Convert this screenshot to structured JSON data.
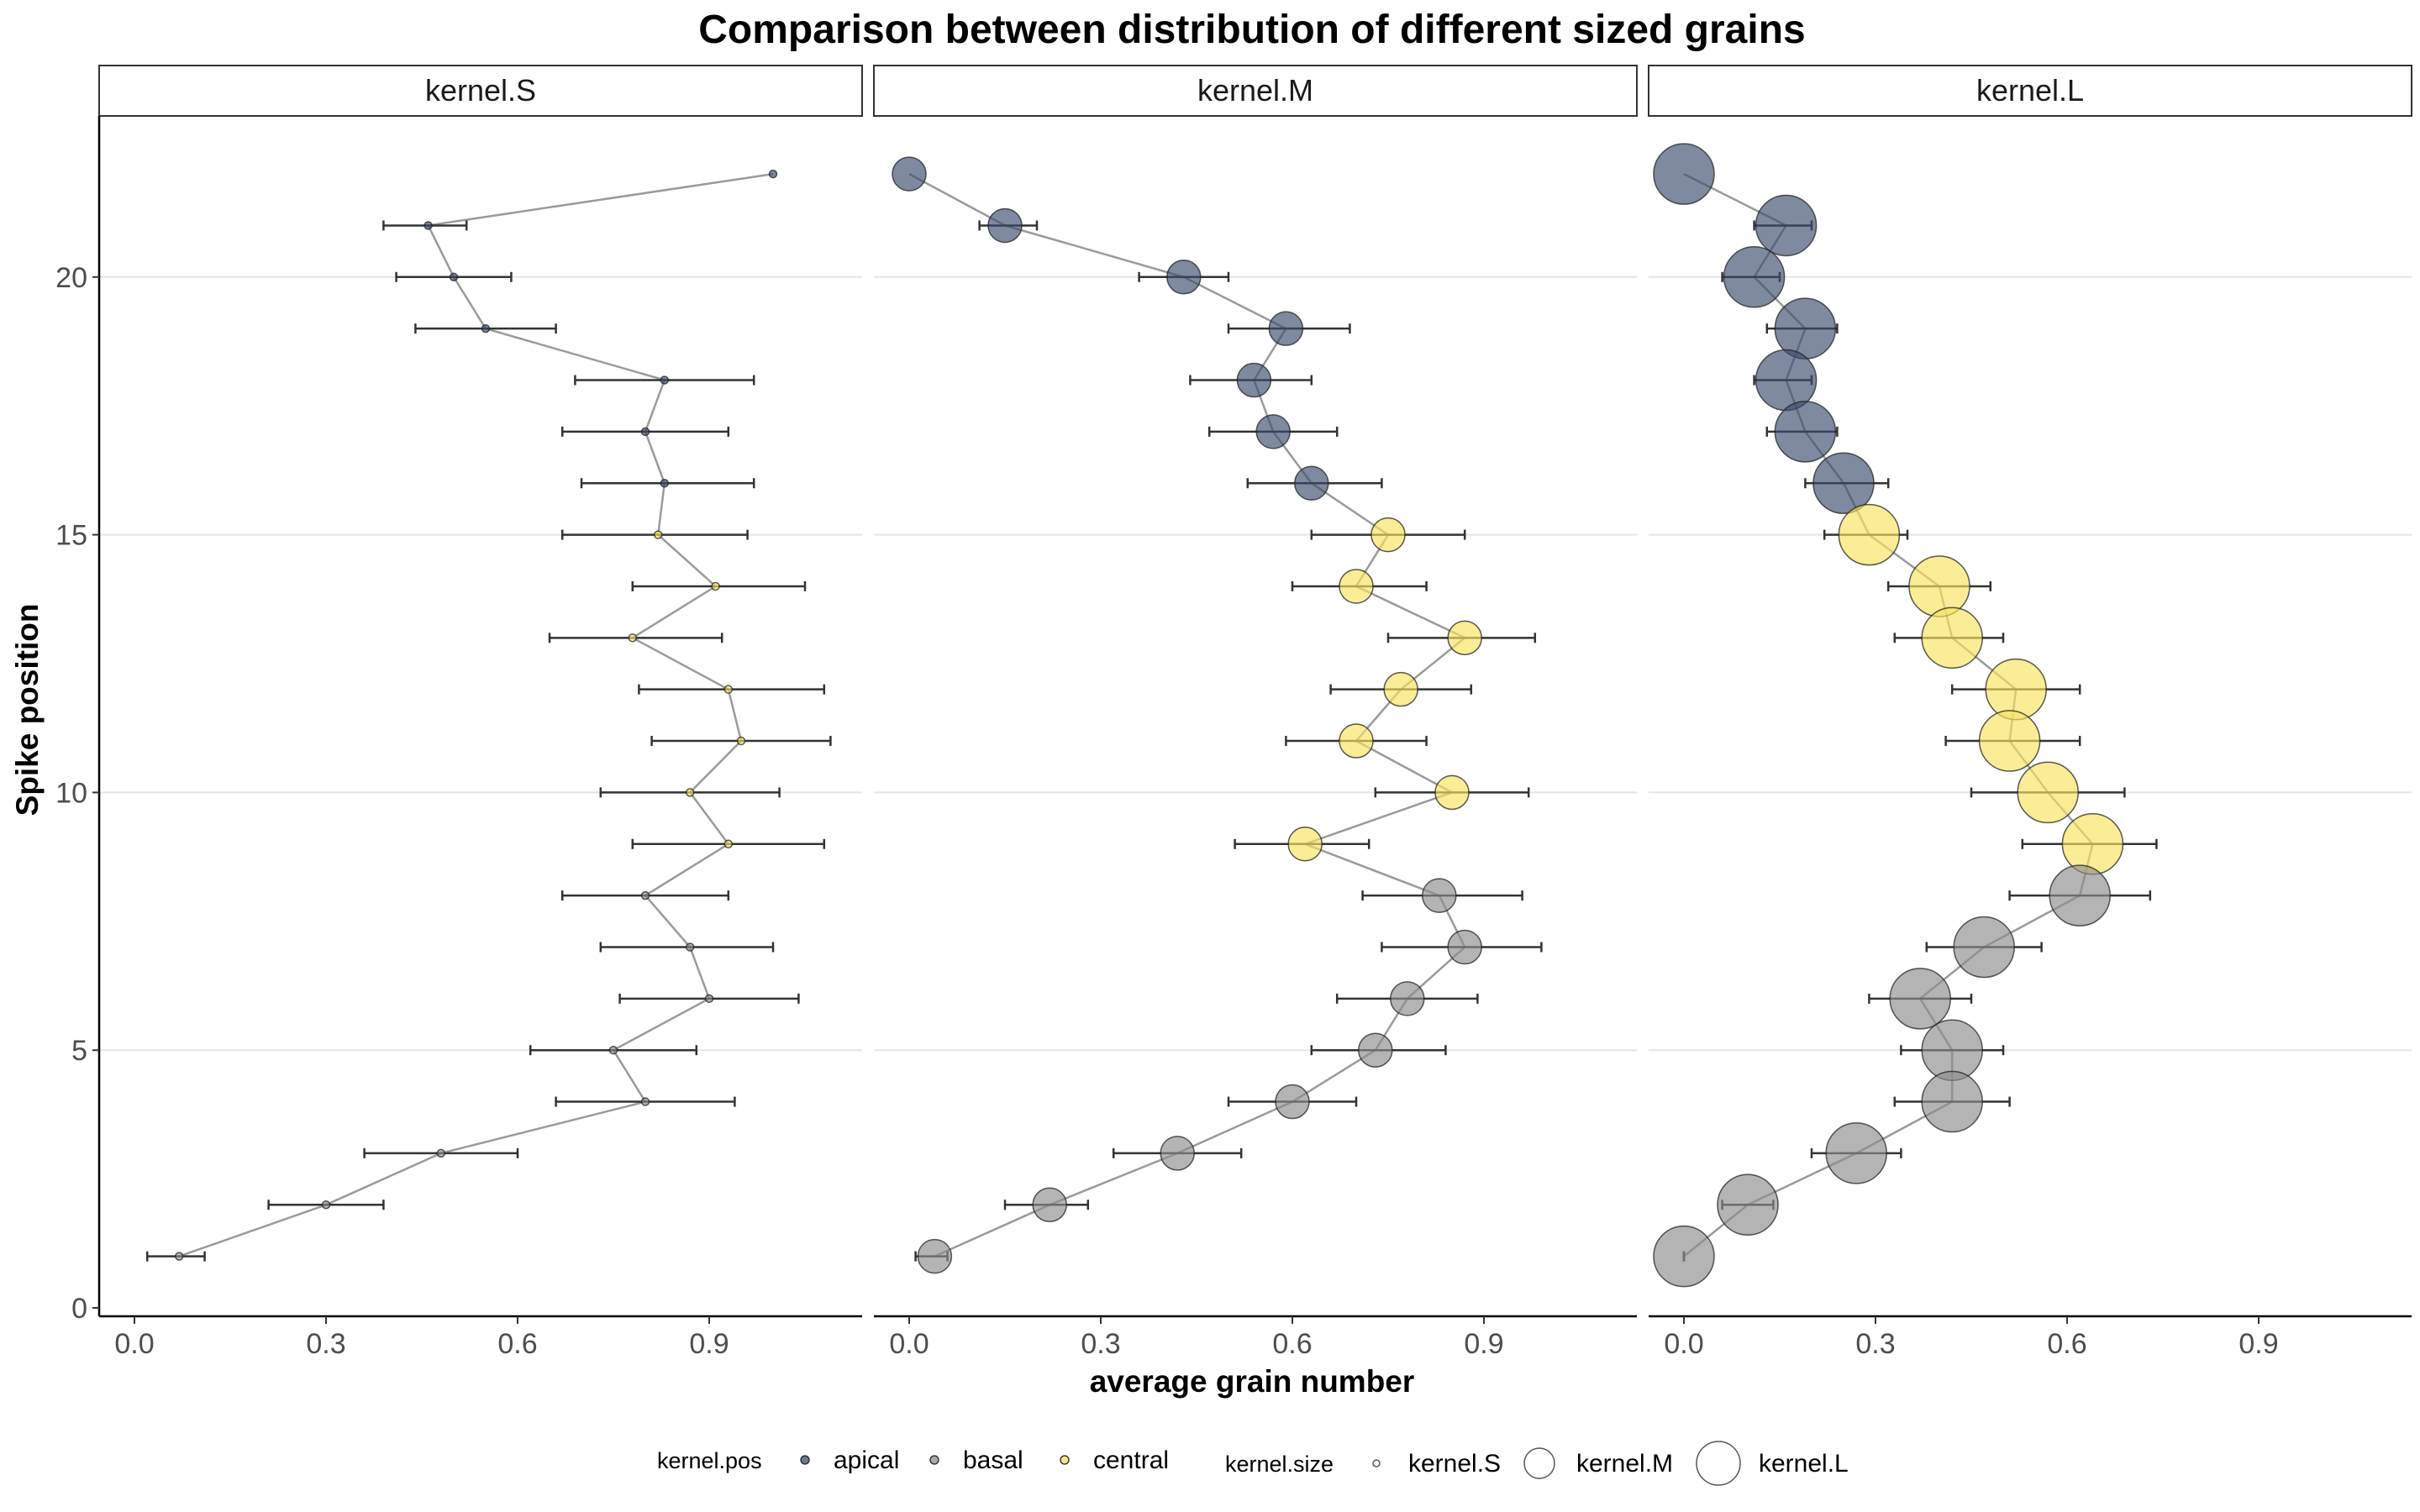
{
  "chart_data": {
    "type": "scatter",
    "title": "Comparison between distribution of different sized grains",
    "xlabel": "average grain number",
    "ylabel": "Spike position",
    "xlim": [
      -0.07,
      1.14
    ],
    "ylim": [
      -0.2,
      23.2
    ],
    "x_ticks": [
      "0.0",
      "0.3",
      "0.6",
      "0.9"
    ],
    "y_ticks": [
      "0",
      "5",
      "10",
      "15",
      "20"
    ],
    "grid": "horizontal major",
    "colors": {
      "apical": "#3b4a6b",
      "basal": "#8c8c8c",
      "central": "#f7e35c",
      "line": "#9a9a9a",
      "errorbar": "#333333"
    },
    "legend": {
      "position": "bottom",
      "pos_title": "kernel.pos",
      "pos_items": [
        "apical",
        "basal",
        "central"
      ],
      "size_title": "kernel.size",
      "size_items": [
        "kernel.S",
        "kernel.M",
        "kernel.L"
      ]
    },
    "panels": [
      {
        "name": "kernel.S",
        "size": "kernel.S",
        "points": [
          {
            "y": 22,
            "x": 1.0,
            "lo": null,
            "hi": null,
            "pos": "apical"
          },
          {
            "y": 21,
            "x": 0.46,
            "lo": 0.39,
            "hi": 0.52,
            "pos": "apical"
          },
          {
            "y": 20,
            "x": 0.5,
            "lo": 0.41,
            "hi": 0.59,
            "pos": "apical"
          },
          {
            "y": 19,
            "x": 0.55,
            "lo": 0.44,
            "hi": 0.66,
            "pos": "apical"
          },
          {
            "y": 18,
            "x": 0.83,
            "lo": 0.69,
            "hi": 0.97,
            "pos": "apical"
          },
          {
            "y": 17,
            "x": 0.8,
            "lo": 0.67,
            "hi": 0.93,
            "pos": "apical"
          },
          {
            "y": 16,
            "x": 0.83,
            "lo": 0.7,
            "hi": 0.97,
            "pos": "apical"
          },
          {
            "y": 15,
            "x": 0.82,
            "lo": 0.67,
            "hi": 0.96,
            "pos": "central"
          },
          {
            "y": 14,
            "x": 0.91,
            "lo": 0.78,
            "hi": 1.05,
            "pos": "central"
          },
          {
            "y": 13,
            "x": 0.78,
            "lo": 0.65,
            "hi": 0.92,
            "pos": "central"
          },
          {
            "y": 12,
            "x": 0.93,
            "lo": 0.79,
            "hi": 1.08,
            "pos": "central"
          },
          {
            "y": 11,
            "x": 0.95,
            "lo": 0.81,
            "hi": 1.09,
            "pos": "central"
          },
          {
            "y": 10,
            "x": 0.87,
            "lo": 0.73,
            "hi": 1.01,
            "pos": "central"
          },
          {
            "y": 9,
            "x": 0.93,
            "lo": 0.78,
            "hi": 1.08,
            "pos": "central"
          },
          {
            "y": 8,
            "x": 0.8,
            "lo": 0.67,
            "hi": 0.93,
            "pos": "basal"
          },
          {
            "y": 7,
            "x": 0.87,
            "lo": 0.73,
            "hi": 1.0,
            "pos": "basal"
          },
          {
            "y": 6,
            "x": 0.9,
            "lo": 0.76,
            "hi": 1.04,
            "pos": "basal"
          },
          {
            "y": 5,
            "x": 0.75,
            "lo": 0.62,
            "hi": 0.88,
            "pos": "basal"
          },
          {
            "y": 4,
            "x": 0.8,
            "lo": 0.66,
            "hi": 0.94,
            "pos": "basal"
          },
          {
            "y": 3,
            "x": 0.48,
            "lo": 0.36,
            "hi": 0.6,
            "pos": "basal"
          },
          {
            "y": 2,
            "x": 0.3,
            "lo": 0.21,
            "hi": 0.39,
            "pos": "basal"
          },
          {
            "y": 1,
            "x": 0.07,
            "lo": 0.02,
            "hi": 0.11,
            "pos": "basal"
          }
        ]
      },
      {
        "name": "kernel.M",
        "size": "kernel.M",
        "points": [
          {
            "y": 22,
            "x": 0.0,
            "lo": null,
            "hi": null,
            "pos": "apical"
          },
          {
            "y": 21,
            "x": 0.15,
            "lo": 0.11,
            "hi": 0.2,
            "pos": "apical"
          },
          {
            "y": 20,
            "x": 0.43,
            "lo": 0.36,
            "hi": 0.5,
            "pos": "apical"
          },
          {
            "y": 19,
            "x": 0.59,
            "lo": 0.5,
            "hi": 0.69,
            "pos": "apical"
          },
          {
            "y": 18,
            "x": 0.54,
            "lo": 0.44,
            "hi": 0.63,
            "pos": "apical"
          },
          {
            "y": 17,
            "x": 0.57,
            "lo": 0.47,
            "hi": 0.67,
            "pos": "apical"
          },
          {
            "y": 16,
            "x": 0.63,
            "lo": 0.53,
            "hi": 0.74,
            "pos": "apical"
          },
          {
            "y": 15,
            "x": 0.75,
            "lo": 0.63,
            "hi": 0.87,
            "pos": "central"
          },
          {
            "y": 14,
            "x": 0.7,
            "lo": 0.6,
            "hi": 0.81,
            "pos": "central"
          },
          {
            "y": 13,
            "x": 0.87,
            "lo": 0.75,
            "hi": 0.98,
            "pos": "central"
          },
          {
            "y": 12,
            "x": 0.77,
            "lo": 0.66,
            "hi": 0.88,
            "pos": "central"
          },
          {
            "y": 11,
            "x": 0.7,
            "lo": 0.59,
            "hi": 0.81,
            "pos": "central"
          },
          {
            "y": 10,
            "x": 0.85,
            "lo": 0.73,
            "hi": 0.97,
            "pos": "central"
          },
          {
            "y": 9,
            "x": 0.62,
            "lo": 0.51,
            "hi": 0.72,
            "pos": "central"
          },
          {
            "y": 8,
            "x": 0.83,
            "lo": 0.71,
            "hi": 0.96,
            "pos": "basal"
          },
          {
            "y": 7,
            "x": 0.87,
            "lo": 0.74,
            "hi": 0.99,
            "pos": "basal"
          },
          {
            "y": 6,
            "x": 0.78,
            "lo": 0.67,
            "hi": 0.89,
            "pos": "basal"
          },
          {
            "y": 5,
            "x": 0.73,
            "lo": 0.63,
            "hi": 0.84,
            "pos": "basal"
          },
          {
            "y": 4,
            "x": 0.6,
            "lo": 0.5,
            "hi": 0.7,
            "pos": "basal"
          },
          {
            "y": 3,
            "x": 0.42,
            "lo": 0.32,
            "hi": 0.52,
            "pos": "basal"
          },
          {
            "y": 2,
            "x": 0.22,
            "lo": 0.15,
            "hi": 0.28,
            "pos": "basal"
          },
          {
            "y": 1,
            "x": 0.04,
            "lo": 0.01,
            "hi": 0.06,
            "pos": "basal"
          }
        ]
      },
      {
        "name": "kernel.L",
        "size": "kernel.L",
        "points": [
          {
            "y": 22,
            "x": 0.0,
            "lo": null,
            "hi": null,
            "pos": "apical"
          },
          {
            "y": 21,
            "x": 0.16,
            "lo": 0.11,
            "hi": 0.2,
            "pos": "apical"
          },
          {
            "y": 20,
            "x": 0.11,
            "lo": 0.06,
            "hi": 0.15,
            "pos": "apical"
          },
          {
            "y": 19,
            "x": 0.19,
            "lo": 0.13,
            "hi": 0.24,
            "pos": "apical"
          },
          {
            "y": 18,
            "x": 0.16,
            "lo": 0.11,
            "hi": 0.2,
            "pos": "apical"
          },
          {
            "y": 17,
            "x": 0.19,
            "lo": 0.13,
            "hi": 0.24,
            "pos": "apical"
          },
          {
            "y": 16,
            "x": 0.25,
            "lo": 0.19,
            "hi": 0.32,
            "pos": "apical"
          },
          {
            "y": 15,
            "x": 0.29,
            "lo": 0.22,
            "hi": 0.35,
            "pos": "central"
          },
          {
            "y": 14,
            "x": 0.4,
            "lo": 0.32,
            "hi": 0.48,
            "pos": "central"
          },
          {
            "y": 13,
            "x": 0.42,
            "lo": 0.33,
            "hi": 0.5,
            "pos": "central"
          },
          {
            "y": 12,
            "x": 0.52,
            "lo": 0.42,
            "hi": 0.62,
            "pos": "central"
          },
          {
            "y": 11,
            "x": 0.51,
            "lo": 0.41,
            "hi": 0.62,
            "pos": "central"
          },
          {
            "y": 10,
            "x": 0.57,
            "lo": 0.45,
            "hi": 0.69,
            "pos": "central"
          },
          {
            "y": 9,
            "x": 0.64,
            "lo": 0.53,
            "hi": 0.74,
            "pos": "central"
          },
          {
            "y": 8,
            "x": 0.62,
            "lo": 0.51,
            "hi": 0.73,
            "pos": "basal"
          },
          {
            "y": 7,
            "x": 0.47,
            "lo": 0.38,
            "hi": 0.56,
            "pos": "basal"
          },
          {
            "y": 6,
            "x": 0.37,
            "lo": 0.29,
            "hi": 0.45,
            "pos": "basal"
          },
          {
            "y": 5,
            "x": 0.42,
            "lo": 0.34,
            "hi": 0.5,
            "pos": "basal"
          },
          {
            "y": 4,
            "x": 0.42,
            "lo": 0.33,
            "hi": 0.51,
            "pos": "basal"
          },
          {
            "y": 3,
            "x": 0.27,
            "lo": 0.2,
            "hi": 0.34,
            "pos": "basal"
          },
          {
            "y": 2,
            "x": 0.1,
            "lo": 0.06,
            "hi": 0.14,
            "pos": "basal"
          },
          {
            "y": 1,
            "x": 0.0,
            "lo": 0.0,
            "hi": 0.0,
            "pos": "basal"
          }
        ]
      }
    ]
  }
}
